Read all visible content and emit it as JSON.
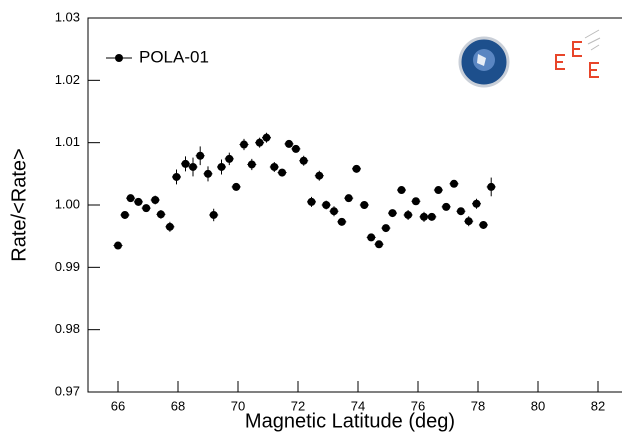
{
  "chart_data": {
    "type": "scatter",
    "x_label": "Magnetic Latitude (deg)",
    "y_label": "Rate/<Rate>",
    "x": [
      66.0,
      66.23,
      66.42,
      66.68,
      66.94,
      67.24,
      67.43,
      67.73,
      67.95,
      68.25,
      68.5,
      68.74,
      69.0,
      69.19,
      69.45,
      69.71,
      69.94,
      70.2,
      70.46,
      70.72,
      70.95,
      71.21,
      71.47,
      71.7,
      71.93,
      72.19,
      72.45,
      72.71,
      72.94,
      73.2,
      73.46,
      73.69,
      73.95,
      74.21,
      74.44,
      74.7,
      74.93,
      75.15,
      75.45,
      75.67,
      75.93,
      76.2,
      76.46,
      76.68,
      76.94,
      77.2,
      77.43,
      77.69,
      77.95,
      78.18,
      78.44
    ],
    "xerr": 0.15,
    "series": [
      {
        "name": "POLA-01",
        "color": "#000000",
        "values": [
          0.9935,
          0.9984,
          1.0011,
          1.0005,
          0.9995,
          1.0008,
          0.9985,
          0.9965,
          1.0045,
          1.0066,
          1.0061,
          1.0079,
          1.005,
          0.9984,
          1.0061,
          1.0074,
          1.0029,
          1.0097,
          1.0065,
          1.01,
          1.0108,
          1.0061,
          1.0052,
          1.0098,
          1.009,
          1.0071,
          1.0005,
          1.0047,
          1.0,
          0.999,
          0.9973,
          1.0011,
          1.0058,
          1.0,
          0.9948,
          0.9937,
          0.9963,
          0.9987,
          1.0024,
          0.9984,
          1.0006,
          0.9981,
          0.9981,
          1.0024,
          0.9997,
          1.0034,
          0.999,
          0.9974,
          1.0002,
          0.9968,
          1.0029
        ],
        "yerr": [
          0.0003,
          0.0006,
          0.0005,
          0.0006,
          0.0006,
          0.0007,
          0.0007,
          0.0008,
          0.0012,
          0.0012,
          0.0015,
          0.0015,
          0.0012,
          0.001,
          0.0012,
          0.001,
          0.0006,
          0.0009,
          0.0009,
          0.0008,
          0.0008,
          0.0008,
          0.0006,
          0.0006,
          0.0006,
          0.0008,
          0.0008,
          0.0008,
          0.0007,
          0.0008,
          0.0006,
          0.0004,
          0.0003,
          0.0006,
          0.0003,
          0.0004,
          0.0004,
          0.0004,
          0.0005,
          0.0008,
          0.0004,
          0.0008,
          0.0006,
          0.0004,
          0.0004,
          0.0003,
          0.0006,
          0.0008,
          0.0008,
          0.0006,
          0.0015
        ]
      }
    ],
    "xlim": [
      65,
      82.8
    ],
    "ylim": [
      0.97,
      1.03
    ],
    "xticks": [
      66,
      68,
      70,
      72,
      74,
      76,
      78,
      80,
      82
    ],
    "yticks": [
      0.97,
      0.98,
      0.99,
      {
        "value": 1,
        "label": "1.00"
      },
      1.01,
      1.02,
      1.03
    ],
    "legend": "top-left"
  }
}
